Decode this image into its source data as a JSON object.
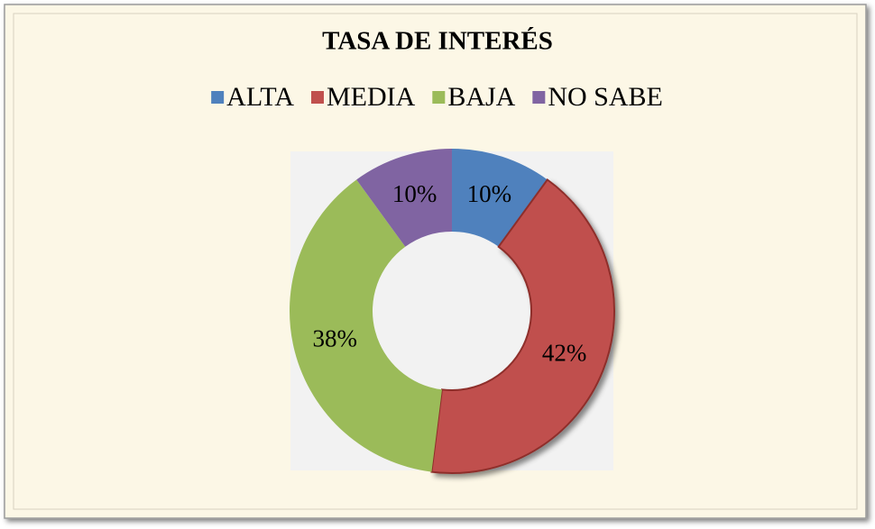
{
  "chart_data": {
    "type": "donut",
    "title": "TASA DE INTERÉS",
    "categories": [
      "ALTA",
      "MEDIA",
      "BAJA",
      "NO SABE"
    ],
    "values": [
      10,
      42,
      38,
      10
    ],
    "value_labels": [
      "10%",
      "42%",
      "38%",
      "10%"
    ],
    "colors": [
      "#4f81bd",
      "#c0504d",
      "#9bbb59",
      "#8064a2"
    ],
    "legend": "top"
  }
}
